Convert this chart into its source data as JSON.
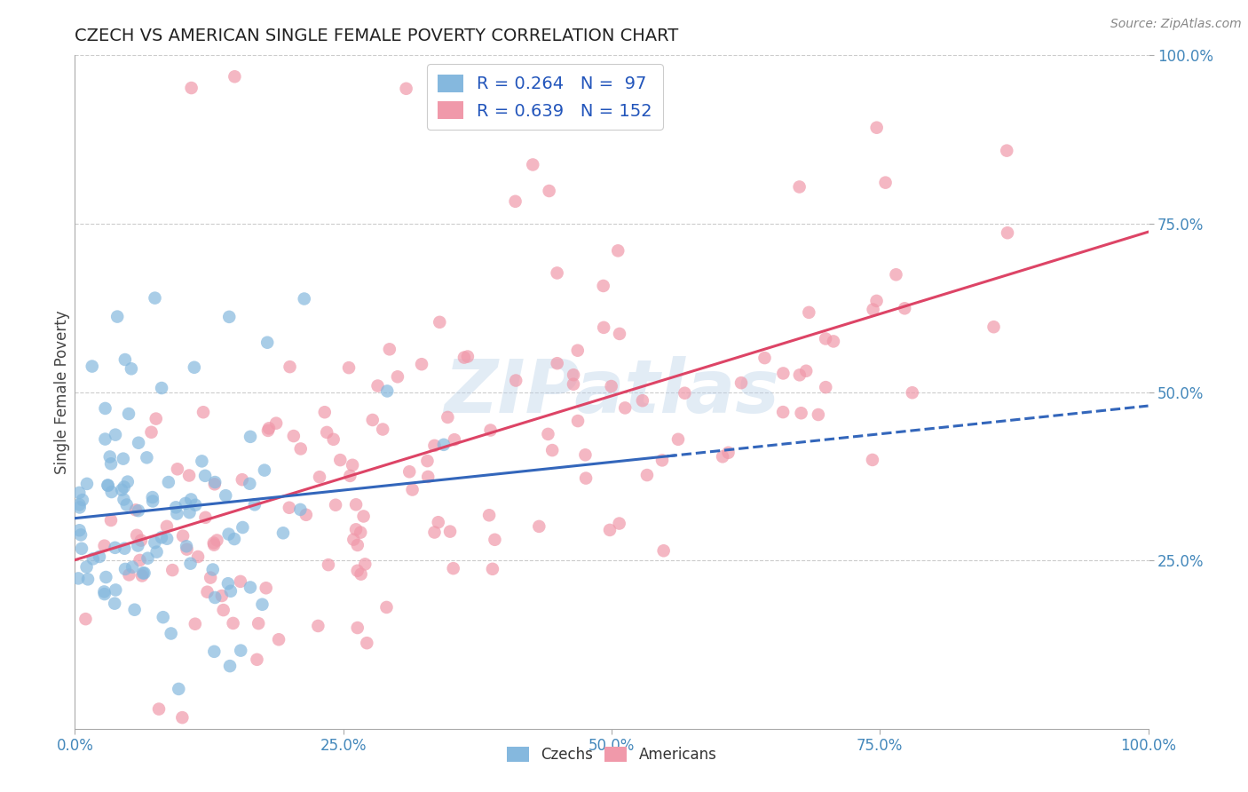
{
  "title": "CZECH VS AMERICAN SINGLE FEMALE POVERTY CORRELATION CHART",
  "source": "Source: ZipAtlas.com",
  "ylabel": "Single Female Poverty",
  "czechs_R": 0.264,
  "czechs_N": 97,
  "americans_R": 0.639,
  "americans_N": 152,
  "czech_color": "#85b8de",
  "american_color": "#f099aa",
  "czech_line_color": "#3366bb",
  "american_line_color": "#dd4466",
  "watermark": "ZIPatlas",
  "xlim": [
    0,
    1
  ],
  "ylim": [
    0,
    1
  ],
  "xticks": [
    0.0,
    0.25,
    0.5,
    0.75,
    1.0
  ],
  "yticks": [
    0.25,
    0.5,
    0.75,
    1.0
  ],
  "xticklabels": [
    "0.0%",
    "25.0%",
    "50.0%",
    "75.0%",
    "100.0%"
  ],
  "yticklabels": [
    "25.0%",
    "50.0%",
    "75.0%",
    "100.0%"
  ],
  "right_yticklabels": [
    "25.0%",
    "50.0%",
    "75.0%",
    "100.0%"
  ],
  "background_color": "#ffffff",
  "grid_color": "#cccccc",
  "tick_color": "#4488bb",
  "title_color": "#222222",
  "legend_label_color": "#2255bb"
}
